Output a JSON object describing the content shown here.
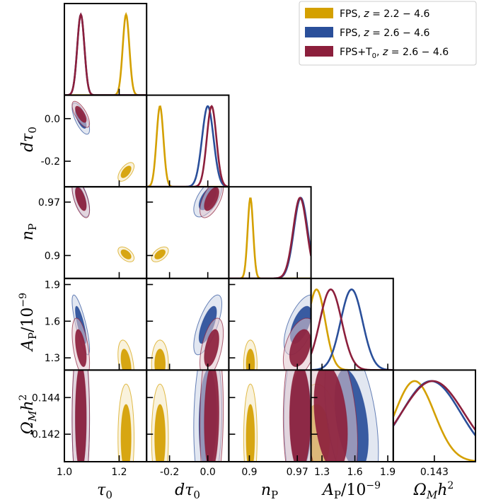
{
  "chart_data": {
    "type": "corner",
    "parameters": [
      {
        "key": "tau0",
        "label": "τ₀",
        "range": [
          1.0,
          1.3
        ],
        "ticks": [
          1.0,
          1.2
        ],
        "tick_labels": [
          "1.0",
          "1.2"
        ]
      },
      {
        "key": "dtau0",
        "label": "dτ₀",
        "range": [
          -0.32,
          0.11
        ],
        "ticks": [
          -0.2,
          0.0
        ],
        "tick_labels": [
          "-0.2",
          "0.0"
        ]
      },
      {
        "key": "nP",
        "label": "nₚ",
        "range": [
          0.87,
          0.99
        ],
        "ticks": [
          0.9,
          0.97
        ],
        "tick_labels": [
          "0.9",
          "0.97"
        ]
      },
      {
        "key": "AP",
        "label": "Aₚ/10⁻⁹",
        "range": [
          1.2,
          1.95
        ],
        "ticks": [
          1.3,
          1.6,
          1.9
        ],
        "tick_labels": [
          "1.3",
          "1.6",
          "1.9"
        ]
      },
      {
        "key": "OmegaMh2",
        "label": "Ωₘh²",
        "range": [
          0.1405,
          0.1455
        ],
        "ticks": [
          0.142,
          0.144
        ],
        "tick_labels": [
          "0.142",
          "0.144"
        ],
        "x_tick_labels": [
          "0.143"
        ],
        "x_ticks": [
          0.143
        ]
      }
    ],
    "series": [
      {
        "name": "FPS, z = 2.2 − 4.6",
        "color": "#d4a000",
        "means": {
          "tau0": 1.225,
          "dtau0": -0.25,
          "nP": 0.9015,
          "AP": 1.25,
          "OmegaMh2": 0.1418
        },
        "sigmas": {
          "tau0": 0.012,
          "dtau0": 0.018,
          "nP": 0.004,
          "AP": 0.08,
          "OmegaMh2": 0.0012
        },
        "corr": {
          "tau0-dtau0": 0.6,
          "tau0-nP": -0.5,
          "dtau0-nP": 0.5,
          "tau0-AP": -0.4,
          "dtau0-AP": 0.0,
          "nP-AP": 0.0,
          "tau0-OmegaMh2": 0.0,
          "dtau0-OmegaMh2": 0.0,
          "nP-OmegaMh2": 0.0,
          "AP-OmegaMh2": 0.0
        }
      },
      {
        "name": "FPS, z = 2.6 − 4.6",
        "color": "#2a4f9a",
        "means": {
          "tau0": 1.06,
          "dtau0": 0.0,
          "nP": 0.975,
          "AP": 1.57,
          "OmegaMh2": 0.1428
        },
        "sigmas": {
          "tau0": 0.013,
          "dtau0": 0.03,
          "nP": 0.01,
          "AP": 0.1,
          "OmegaMh2": 0.0018
        },
        "corr": {
          "tau0-dtau0": -0.7,
          "tau0-nP": -0.6,
          "dtau0-nP": 0.6,
          "tau0-AP": -0.8,
          "dtau0-AP": 0.7,
          "nP-AP": 0.6,
          "tau0-OmegaMh2": 0.0,
          "dtau0-OmegaMh2": 0.1,
          "nP-OmegaMh2": 0.0,
          "AP-OmegaMh2": -0.4
        }
      },
      {
        "name": "FPS+T₀, z = 2.6 − 4.6",
        "color": "#8c1f3c",
        "means": {
          "tau0": 1.06,
          "dtau0": 0.02,
          "nP": 0.974,
          "AP": 1.38,
          "OmegaMh2": 0.1429
        },
        "sigmas": {
          "tau0": 0.013,
          "dtau0": 0.025,
          "nP": 0.01,
          "AP": 0.1,
          "OmegaMh2": 0.0019
        },
        "corr": {
          "tau0-dtau0": -0.7,
          "tau0-nP": -0.6,
          "dtau0-nP": 0.6,
          "tau0-AP": -0.5,
          "dtau0-AP": 0.5,
          "nP-AP": 0.4,
          "tau0-OmegaMh2": 0.0,
          "dtau0-OmegaMh2": 0.1,
          "nP-OmegaMh2": 0.0,
          "AP-OmegaMh2": -0.3
        }
      }
    ],
    "legend_position": "top-right"
  },
  "legend": {
    "items": [
      {
        "prefix": "FPS, ",
        "z": "z",
        "range": " = 2.2 − 4.6"
      },
      {
        "prefix": "FPS, ",
        "z": "z",
        "range": " = 2.6 − 4.6"
      },
      {
        "prefix": "FPS+T",
        "sub": "0",
        "comma": ", ",
        "z": "z",
        "range": " = 2.6 − 4.6"
      }
    ]
  }
}
